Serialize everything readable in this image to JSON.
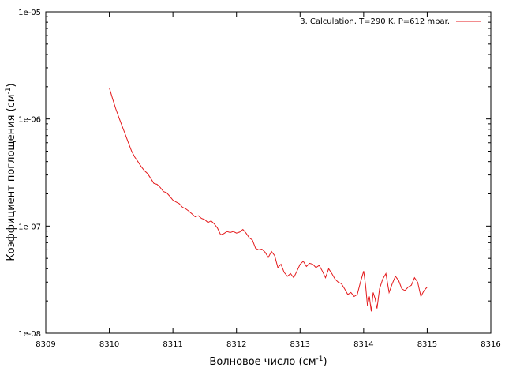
{
  "chart_data": {
    "type": "line",
    "xlabel": "Волновое число (см",
    "xlabel_sup": "-1",
    "xlabel_close": ")",
    "ylabel": "Коэффициент поглощения (см",
    "ylabel_sup": "-1",
    "ylabel_close": ")",
    "xlim": [
      8309,
      8316
    ],
    "ylim": [
      1e-08,
      1e-05
    ],
    "yscale": "log",
    "grid": false,
    "legend_position": "top-right",
    "x_ticks": [
      "8309",
      "8310",
      "8311",
      "8312",
      "8313",
      "8314",
      "8315",
      "8316"
    ],
    "y_ticks": [
      "1e-08",
      "1e-07",
      "1e-06",
      "1e-05"
    ],
    "series": [
      {
        "name": "3. Calculation, T=290 K, P=612 mbar.",
        "color": "#e41a1c",
        "points": [
          [
            8310.0,
            1.95e-06
          ],
          [
            8310.05,
            1.55e-06
          ],
          [
            8310.1,
            1.25e-06
          ],
          [
            8310.15,
            1.03e-06
          ],
          [
            8310.2,
            8.6e-07
          ],
          [
            8310.25,
            7.2e-07
          ],
          [
            8310.3,
            6e-07
          ],
          [
            8310.35,
            5e-07
          ],
          [
            8310.4,
            4.4e-07
          ],
          [
            8310.45,
            4e-07
          ],
          [
            8310.5,
            3.6e-07
          ],
          [
            8310.55,
            3.3e-07
          ],
          [
            8310.6,
            3.1e-07
          ],
          [
            8310.65,
            2.8e-07
          ],
          [
            8310.7,
            2.5e-07
          ],
          [
            8310.75,
            2.45e-07
          ],
          [
            8310.8,
            2.3e-07
          ],
          [
            8310.85,
            2.1e-07
          ],
          [
            8310.9,
            2.05e-07
          ],
          [
            8310.95,
            1.9e-07
          ],
          [
            8311.0,
            1.75e-07
          ],
          [
            8311.05,
            1.68e-07
          ],
          [
            8311.1,
            1.62e-07
          ],
          [
            8311.15,
            1.5e-07
          ],
          [
            8311.2,
            1.45e-07
          ],
          [
            8311.25,
            1.38e-07
          ],
          [
            8311.3,
            1.3e-07
          ],
          [
            8311.35,
            1.22e-07
          ],
          [
            8311.4,
            1.25e-07
          ],
          [
            8311.45,
            1.18e-07
          ],
          [
            8311.5,
            1.15e-07
          ],
          [
            8311.55,
            1.08e-07
          ],
          [
            8311.6,
            1.12e-07
          ],
          [
            8311.65,
            1.05e-07
          ],
          [
            8311.7,
            9.6e-08
          ],
          [
            8311.75,
            8.3e-08
          ],
          [
            8311.8,
            8.5e-08
          ],
          [
            8311.85,
            8.9e-08
          ],
          [
            8311.9,
            8.7e-08
          ],
          [
            8311.95,
            8.9e-08
          ],
          [
            8312.0,
            8.6e-08
          ],
          [
            8312.05,
            8.8e-08
          ],
          [
            8312.1,
            9.3e-08
          ],
          [
            8312.15,
            8.6e-08
          ],
          [
            8312.2,
            7.8e-08
          ],
          [
            8312.25,
            7.4e-08
          ],
          [
            8312.3,
            6.2e-08
          ],
          [
            8312.35,
            6e-08
          ],
          [
            8312.4,
            6.1e-08
          ],
          [
            8312.45,
            5.7e-08
          ],
          [
            8312.5,
            5.1e-08
          ],
          [
            8312.55,
            5.8e-08
          ],
          [
            8312.6,
            5.3e-08
          ],
          [
            8312.65,
            4.1e-08
          ],
          [
            8312.7,
            4.4e-08
          ],
          [
            8312.75,
            3.7e-08
          ],
          [
            8312.8,
            3.4e-08
          ],
          [
            8312.85,
            3.6e-08
          ],
          [
            8312.9,
            3.3e-08
          ],
          [
            8312.95,
            3.8e-08
          ],
          [
            8313.0,
            4.4e-08
          ],
          [
            8313.05,
            4.7e-08
          ],
          [
            8313.1,
            4.2e-08
          ],
          [
            8313.15,
            4.5e-08
          ],
          [
            8313.2,
            4.4e-08
          ],
          [
            8313.25,
            4.1e-08
          ],
          [
            8313.3,
            4.3e-08
          ],
          [
            8313.35,
            3.8e-08
          ],
          [
            8313.4,
            3.3e-08
          ],
          [
            8313.45,
            4e-08
          ],
          [
            8313.5,
            3.6e-08
          ],
          [
            8313.55,
            3.2e-08
          ],
          [
            8313.6,
            3e-08
          ],
          [
            8313.65,
            2.9e-08
          ],
          [
            8313.7,
            2.6e-08
          ],
          [
            8313.75,
            2.3e-08
          ],
          [
            8313.8,
            2.4e-08
          ],
          [
            8313.85,
            2.2e-08
          ],
          [
            8313.9,
            2.3e-08
          ],
          [
            8313.95,
            3e-08
          ],
          [
            8314.0,
            3.8e-08
          ],
          [
            8314.03,
            2.8e-08
          ],
          [
            8314.06,
            1.8e-08
          ],
          [
            8314.09,
            2.2e-08
          ],
          [
            8314.12,
            1.6e-08
          ],
          [
            8314.15,
            2.4e-08
          ],
          [
            8314.18,
            2.1e-08
          ],
          [
            8314.21,
            1.7e-08
          ],
          [
            8314.25,
            2.6e-08
          ],
          [
            8314.3,
            3.2e-08
          ],
          [
            8314.35,
            3.6e-08
          ],
          [
            8314.4,
            2.4e-08
          ],
          [
            8314.45,
            2.9e-08
          ],
          [
            8314.5,
            3.4e-08
          ],
          [
            8314.55,
            3.1e-08
          ],
          [
            8314.6,
            2.6e-08
          ],
          [
            8314.65,
            2.5e-08
          ],
          [
            8314.7,
            2.7e-08
          ],
          [
            8314.75,
            2.8e-08
          ],
          [
            8314.8,
            3.3e-08
          ],
          [
            8314.85,
            3e-08
          ],
          [
            8314.9,
            2.2e-08
          ],
          [
            8314.95,
            2.5e-08
          ],
          [
            8315.0,
            2.7e-08
          ]
        ]
      }
    ]
  }
}
